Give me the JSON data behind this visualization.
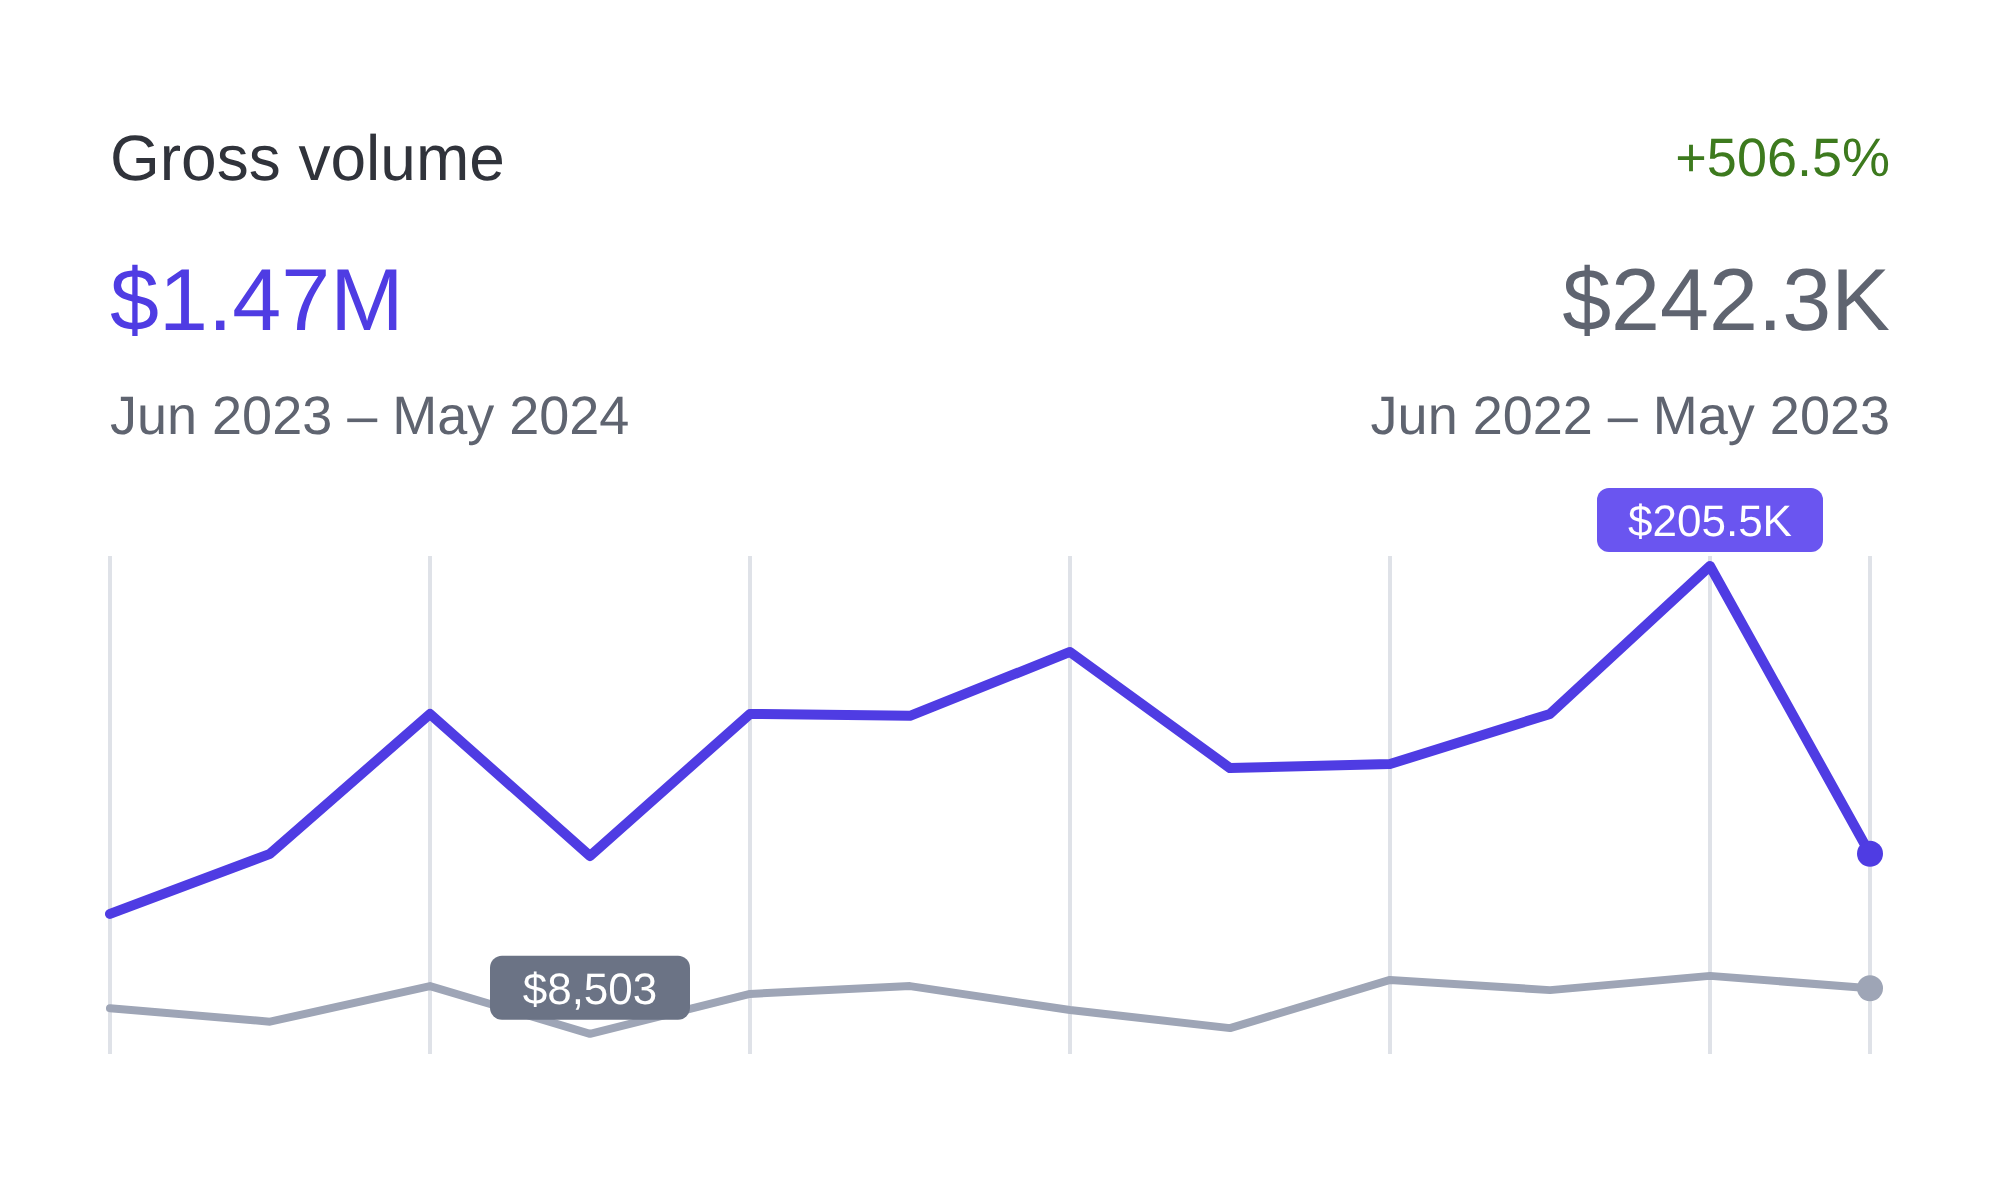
{
  "chart_data": {
    "type": "line",
    "title": "Gross volume",
    "grid": "x",
    "marker": "none",
    "line_style": "solid",
    "annotations": [
      "$1.47M",
      "Jun 2023 – May 2024",
      "+506.5%",
      "$242.3K",
      "Jun 2022 – May 2023"
    ],
    "categories": [
      null,
      null,
      null,
      null,
      null,
      null,
      null,
      null,
      null,
      null,
      null,
      null
    ],
    "series": [
      {
        "color": "#4f3ce3",
        "values": [
          59000,
          84300,
          143200,
          83400,
          143200,
          142400,
          169300,
          120400,
          122100,
          143200,
          205500,
          84300
        ],
        "value_labels": [
          null,
          null,
          null,
          null,
          null,
          null,
          null,
          null,
          null,
          null,
          "$205.5K",
          null
        ]
      },
      {
        "color": "#9ea5b6",
        "values": [
          19300,
          13600,
          28600,
          8503,
          25300,
          28600,
          18500,
          10900,
          31200,
          26900,
          32900,
          27700
        ],
        "value_labels": [
          null,
          null,
          null,
          "$8,503",
          null,
          null,
          null,
          null,
          null,
          null,
          null,
          null
        ]
      }
    ]
  }
}
